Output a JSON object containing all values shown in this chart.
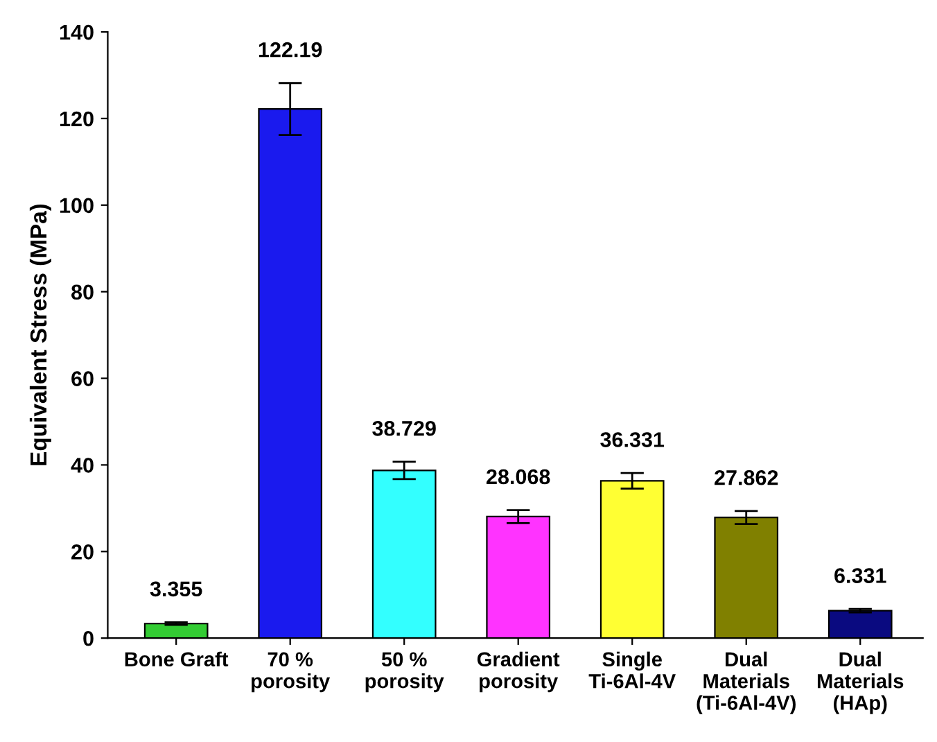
{
  "chart_data": {
    "type": "bar",
    "ylabel": "Equivalent Stress (MPa)",
    "categories": [
      "Bone Graft",
      "70 %\nporosity",
      "50 %\nporosity",
      "Gradient\nporosity",
      "Single\nTi-6Al-4V",
      "Dual\nMaterials\n(Ti-6Al-4V)",
      "Dual\nMaterials\n(HAp)"
    ],
    "values": [
      3.355,
      122.19,
      38.729,
      28.068,
      36.331,
      27.862,
      6.331
    ],
    "errors": [
      0.3,
      6,
      2,
      1.5,
      1.8,
      1.5,
      0.4
    ],
    "colors": [
      "#33cc33",
      "#1a1aee",
      "#33ffff",
      "#ff33ff",
      "#ffff33",
      "#808000",
      "#0a0a80"
    ],
    "data_labels": true,
    "ylim": [
      0,
      140
    ],
    "yticks": [
      0,
      20,
      40,
      60,
      80,
      100,
      120,
      140
    ],
    "grid": false
  }
}
